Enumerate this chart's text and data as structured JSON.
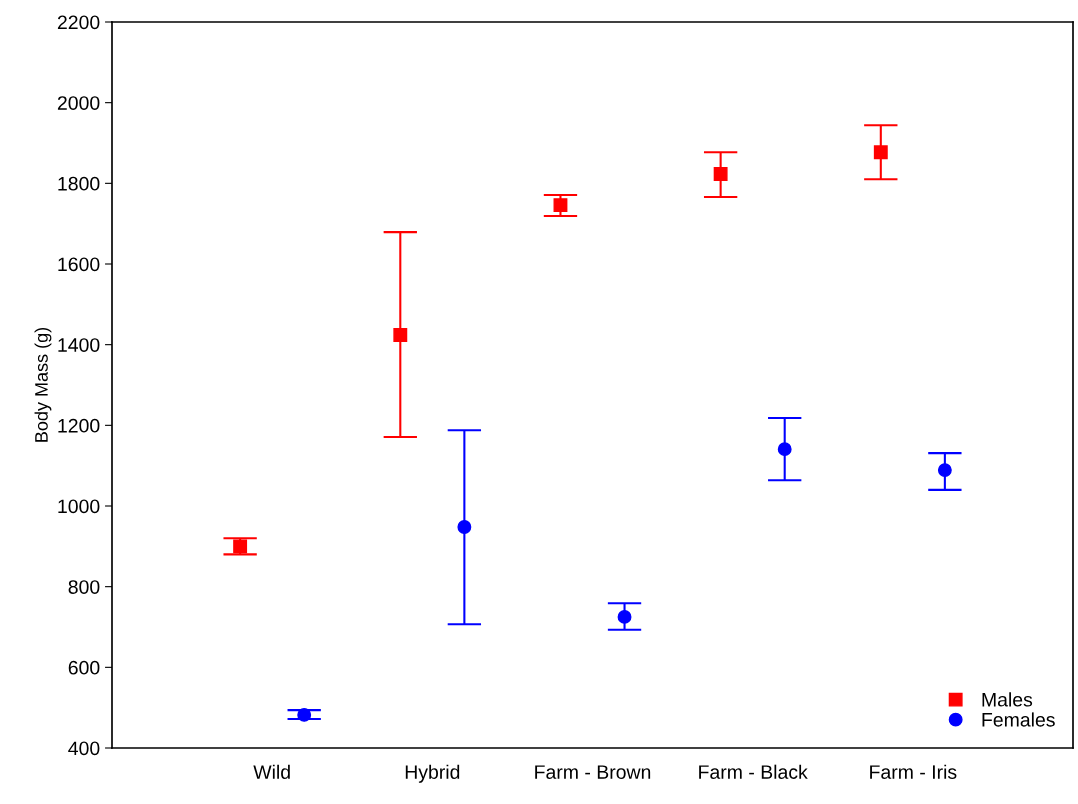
{
  "chart_data": {
    "type": "scatter",
    "ylabel": "Body Mass (g)",
    "categories": [
      "Wild",
      "Hybrid",
      "Farm - Brown",
      "Farm - Black",
      "Farm - Iris"
    ],
    "series": [
      {
        "name": "Males",
        "color": "#ff0000",
        "marker": "square",
        "values": [
          900,
          1424,
          1746,
          1823,
          1877
        ],
        "errors": [
          [
            880,
            920
          ],
          [
            1171,
            1679
          ],
          [
            1719,
            1771
          ],
          [
            1766,
            1877
          ],
          [
            1810,
            1944
          ]
        ]
      },
      {
        "name": "Females",
        "color": "#0000ff",
        "marker": "circle",
        "values": [
          482,
          948,
          725,
          1141,
          1089
        ],
        "errors": [
          [
            472,
            494
          ],
          [
            707,
            1188
          ],
          [
            693,
            759
          ],
          [
            1064,
            1218
          ],
          [
            1040,
            1131
          ]
        ]
      }
    ],
    "ylim": [
      400,
      2200
    ],
    "yticks": [
      400,
      600,
      800,
      1000,
      1200,
      1400,
      1600,
      1800,
      2000,
      2200
    ],
    "grid": false,
    "legend": "bottom right"
  }
}
